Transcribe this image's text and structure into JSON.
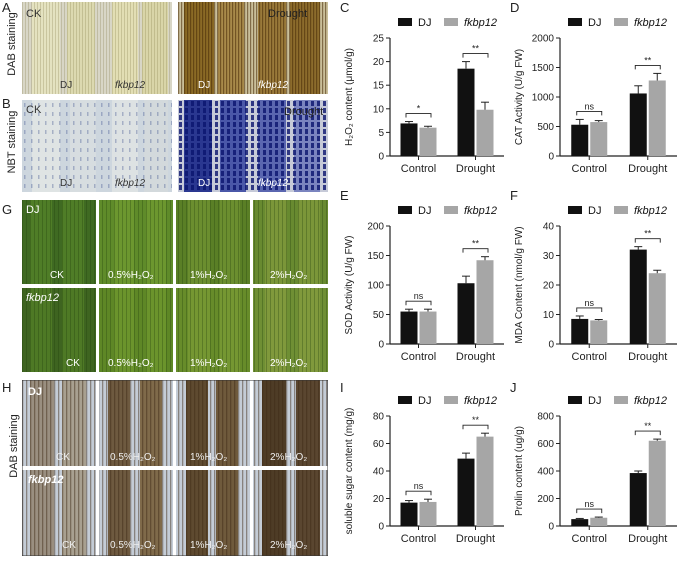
{
  "panels": {
    "A": {
      "letter": "A",
      "side_label": "DAB staining",
      "ck": "CK",
      "drought": "Drought",
      "dj": "DJ",
      "mut": "fkbp12"
    },
    "B": {
      "letter": "B",
      "side_label": "NBT staining",
      "ck": "CK",
      "drought": "Drought",
      "dj": "DJ",
      "mut": "fkbp12"
    },
    "G": {
      "letter": "G",
      "row1": "DJ",
      "row2": "fkbp12",
      "conds": [
        "CK",
        "0.5%H₂O₂",
        "1%H₂O₂",
        "2%H₂O₂"
      ]
    },
    "H": {
      "letter": "H",
      "side_label": "DAB staining",
      "row1": "DJ",
      "row2": "fkbp12",
      "conds": [
        "CK",
        "0.5%H₂O₂",
        "1%H₂O₂",
        "2%H₂O₂"
      ]
    }
  },
  "colors": {
    "dj": "#111111",
    "mut": "#a6a6a6"
  },
  "chart_data": [
    {
      "id": "C",
      "type": "bar",
      "ylabel": "H₂O₂ content (μmol/g)",
      "categories": [
        "Control",
        "Drought"
      ],
      "ylim": [
        0,
        25
      ],
      "ticks": [
        0,
        5,
        10,
        15,
        20,
        25
      ],
      "series": [
        {
          "name": "DJ",
          "values": [
            6.9,
            18.5
          ],
          "err": [
            0.4,
            1.5
          ]
        },
        {
          "name": "fkbp12",
          "values": [
            6.0,
            9.8
          ],
          "err": [
            0.3,
            1.6
          ]
        }
      ],
      "sig": [
        "*",
        "**"
      ]
    },
    {
      "id": "D",
      "type": "bar",
      "ylabel": "CAT Activity (U/g FW)",
      "categories": [
        "Control",
        "Drought"
      ],
      "ylim": [
        0,
        2000
      ],
      "ticks": [
        0,
        500,
        1000,
        1500,
        2000
      ],
      "series": [
        {
          "name": "DJ",
          "values": [
            530,
            1060
          ],
          "err": [
            90,
            130
          ]
        },
        {
          "name": "fkbp12",
          "values": [
            575,
            1280
          ],
          "err": [
            25,
            120
          ]
        }
      ],
      "sig": [
        "ns",
        "**"
      ]
    },
    {
      "id": "E",
      "type": "bar",
      "ylabel": "SOD Activity (U/g FW)",
      "categories": [
        "Control",
        "Drought"
      ],
      "ylim": [
        0,
        200
      ],
      "ticks": [
        0,
        50,
        100,
        150,
        200
      ],
      "series": [
        {
          "name": "DJ",
          "values": [
            55,
            103
          ],
          "err": [
            4,
            12
          ]
        },
        {
          "name": "fkbp12",
          "values": [
            55,
            142
          ],
          "err": [
            4,
            6
          ]
        }
      ],
      "sig": [
        "ns",
        "**"
      ]
    },
    {
      "id": "F",
      "type": "bar",
      "ylabel": "MDA Content (nmol/g FW)",
      "categories": [
        "Control",
        "Drought"
      ],
      "ylim": [
        0,
        40
      ],
      "ticks": [
        0,
        10,
        20,
        30,
        40
      ],
      "series": [
        {
          "name": "DJ",
          "values": [
            8.5,
            32
          ],
          "err": [
            1,
            1
          ]
        },
        {
          "name": "fkbp12",
          "values": [
            8.0,
            24
          ],
          "err": [
            0.3,
            1
          ]
        }
      ],
      "sig": [
        "ns",
        "**"
      ]
    },
    {
      "id": "I",
      "type": "bar",
      "ylabel": "soluble sugar content (mg/g)",
      "categories": [
        "Control",
        "Drought"
      ],
      "ylim": [
        0,
        80
      ],
      "ticks": [
        0,
        20,
        40,
        60,
        80
      ],
      "series": [
        {
          "name": "DJ",
          "values": [
            17,
            49
          ],
          "err": [
            1.5,
            4
          ]
        },
        {
          "name": "fkbp12",
          "values": [
            17.5,
            65
          ],
          "err": [
            2,
            2.5
          ]
        }
      ],
      "sig": [
        "ns",
        "**"
      ]
    },
    {
      "id": "J",
      "type": "bar",
      "ylabel": "Prolin content (ug/g)",
      "categories": [
        "Control",
        "Drought"
      ],
      "ylim": [
        0,
        800
      ],
      "ticks": [
        0,
        200,
        400,
        600,
        800
      ],
      "series": [
        {
          "name": "DJ",
          "values": [
            50,
            385
          ],
          "err": [
            5,
            15
          ]
        },
        {
          "name": "fkbp12",
          "values": [
            60,
            620
          ],
          "err": [
            5,
            12
          ]
        }
      ],
      "sig": [
        "ns",
        "**"
      ]
    }
  ]
}
